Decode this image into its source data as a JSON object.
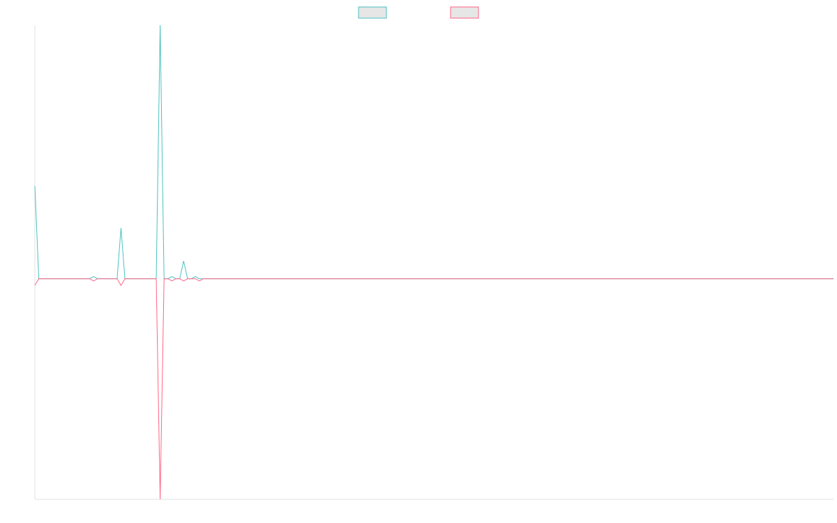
{
  "chart_data": {
    "type": "line",
    "x": [
      0,
      1,
      14,
      15,
      16,
      21,
      22,
      23,
      31,
      32,
      33,
      34,
      35,
      36,
      37,
      38,
      39,
      40,
      41,
      42,
      43,
      204
    ],
    "series": [
      {
        "color": "#4bc0c0",
        "values": [
          0.42,
          0,
          0,
          0.01,
          0,
          0,
          0.23,
          0,
          0,
          1.15,
          0,
          0,
          0.01,
          0,
          0,
          0.08,
          0,
          0,
          0.01,
          0,
          0,
          0
        ]
      },
      {
        "color": "#ff6384",
        "values": [
          -0.03,
          0,
          0,
          -0.01,
          0,
          0,
          -0.03,
          0,
          0,
          -1,
          0,
          0,
          -0.01,
          0,
          0,
          -0.01,
          0,
          0,
          0,
          -0.01,
          0,
          0
        ]
      }
    ],
    "xlim": [
      0,
      204
    ],
    "ylim": [
      -1,
      1.15
    ],
    "legend": "top"
  }
}
